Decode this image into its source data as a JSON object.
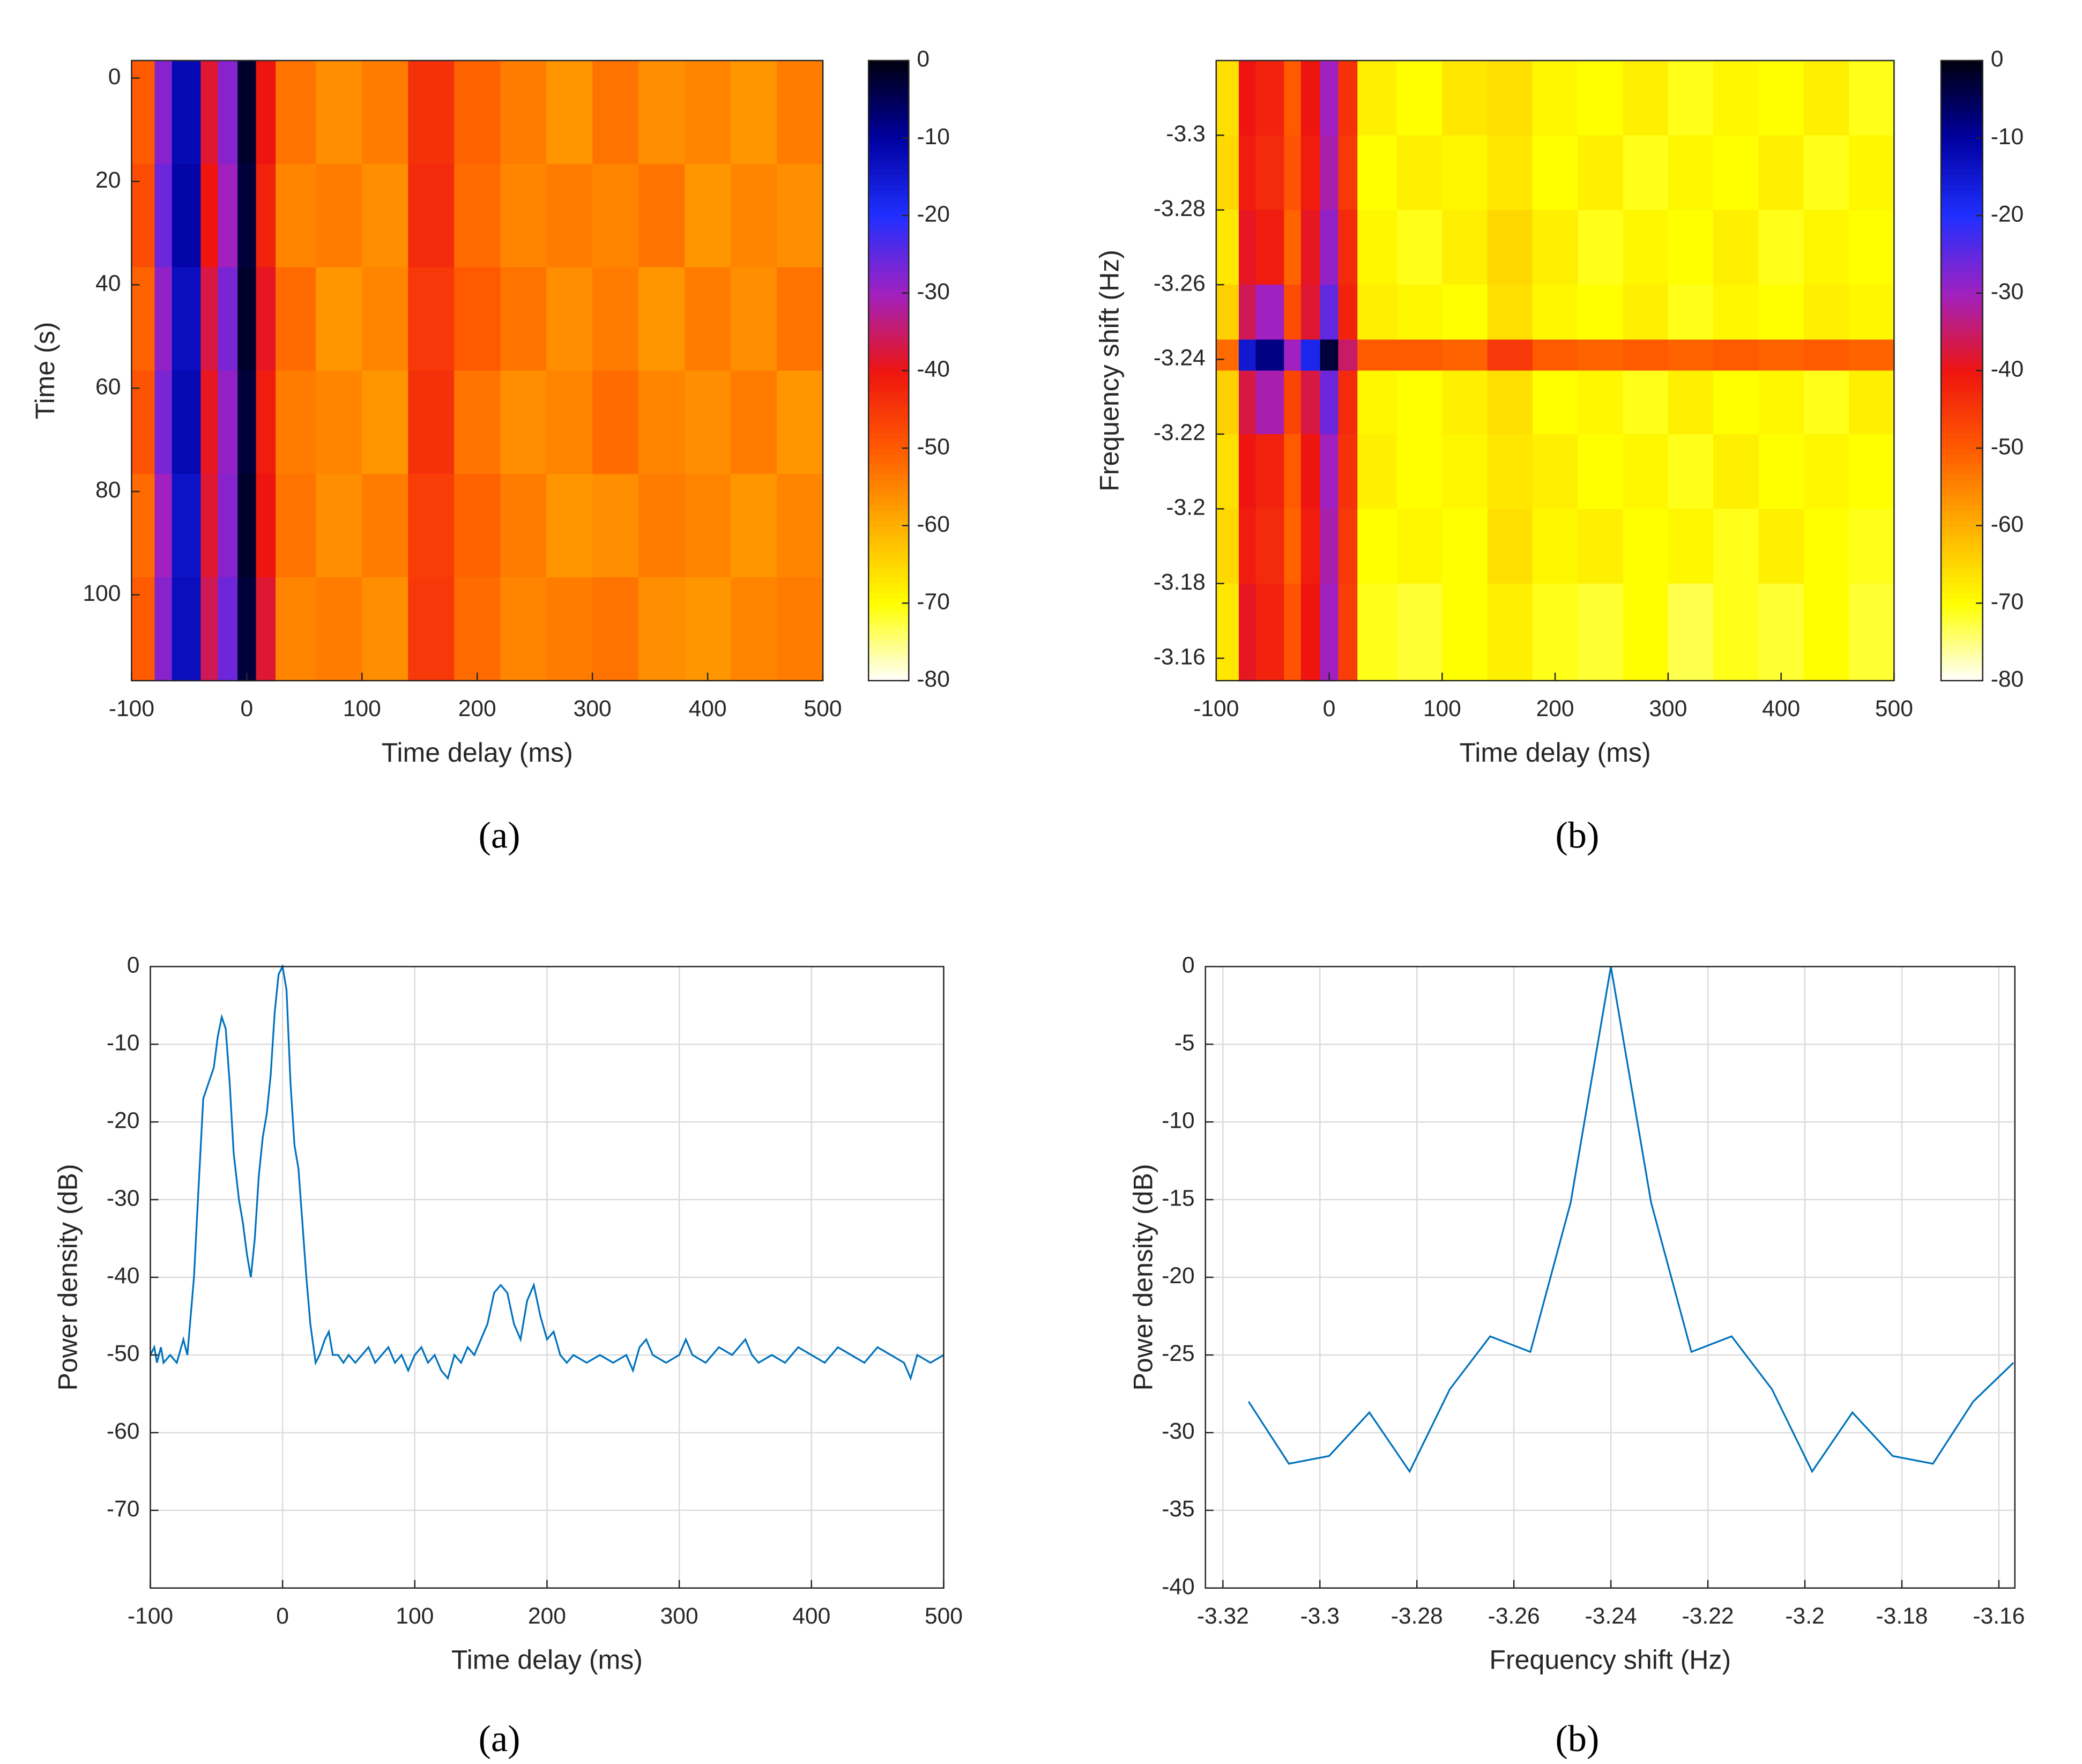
{
  "chart_data": [
    {
      "type": "heatmap",
      "panel_label": "(a)",
      "xlabel": "Time delay (ms)",
      "ylabel": "Time (s)",
      "xlim": [
        -100,
        500
      ],
      "xticks": [
        -100,
        0,
        100,
        200,
        300,
        400,
        500
      ],
      "ylim": [
        -3.4,
        116.6
      ],
      "yreverse": true,
      "yticks": [
        0,
        20,
        40,
        60,
        80,
        100
      ],
      "x_edges": [
        -100,
        -80,
        -65,
        -40,
        -25,
        -8,
        8,
        25,
        60,
        100,
        140,
        180,
        220,
        260,
        300,
        340,
        380,
        420,
        460,
        500
      ],
      "y_edges": [
        -3.4,
        16.6,
        36.6,
        56.6,
        76.6,
        96.6,
        116.6
      ],
      "z": [
        [
          -50,
          -28,
          -12,
          -38,
          -28,
          -2,
          -40,
          -53,
          -56,
          -54,
          -44,
          -51,
          -54,
          -57,
          -53,
          -56,
          -55,
          -57,
          -54
        ],
        [
          -48,
          -26,
          -11,
          -40,
          -30,
          -3,
          -42,
          -55,
          -54,
          -56,
          -43,
          -52,
          -55,
          -54,
          -55,
          -53,
          -57,
          -55,
          -56
        ],
        [
          -51,
          -29,
          -13,
          -37,
          -27,
          -2,
          -39,
          -52,
          -57,
          -55,
          -45,
          -50,
          -53,
          -56,
          -54,
          -57,
          -54,
          -56,
          -53
        ],
        [
          -49,
          -27,
          -12,
          -39,
          -29,
          -3,
          -41,
          -54,
          -55,
          -57,
          -44,
          -53,
          -56,
          -55,
          -52,
          -55,
          -56,
          -54,
          -57
        ],
        [
          -52,
          -30,
          -14,
          -38,
          -28,
          -2,
          -40,
          -53,
          -56,
          -54,
          -46,
          -51,
          -54,
          -57,
          -56,
          -54,
          -55,
          -57,
          -55
        ],
        [
          -50,
          -28,
          -13,
          -36,
          -26,
          -3,
          -38,
          -55,
          -54,
          -56,
          -45,
          -52,
          -55,
          -54,
          -53,
          -56,
          -57,
          -55,
          -54
        ]
      ],
      "clim": [
        -80,
        0
      ],
      "cticks": [
        0,
        -10,
        -20,
        -30,
        -40,
        -50,
        -60,
        -70,
        -80
      ],
      "colormap": [
        "#ffffff",
        "#ffff00",
        "#ffb000",
        "#ff5a00",
        "#ee1510",
        "#a020c0",
        "#2030ff",
        "#0000a0",
        "#000010"
      ]
    },
    {
      "type": "heatmap",
      "panel_label": "(b)",
      "xlabel": "Time delay (ms)",
      "ylabel": "Frequency shift (Hz)",
      "xlim": [
        -100,
        500
      ],
      "xticks": [
        -100,
        0,
        100,
        200,
        300,
        400,
        500
      ],
      "ylim": [
        -3.32,
        -3.154
      ],
      "yreverse": true,
      "yticks": [
        -3.3,
        -3.28,
        -3.26,
        -3.24,
        -3.22,
        -3.2,
        -3.18,
        -3.16
      ],
      "x_edges": [
        -100,
        -80,
        -65,
        -40,
        -25,
        -8,
        8,
        25,
        60,
        100,
        140,
        180,
        220,
        260,
        300,
        340,
        380,
        420,
        460,
        500
      ],
      "y_edges": [
        -3.32,
        -3.3,
        -3.28,
        -3.26,
        -3.2453,
        -3.237,
        -3.22,
        -3.2,
        -3.18,
        -3.154
      ],
      "z": [
        [
          -66,
          -40,
          -42,
          -50,
          -40,
          -30,
          -44,
          -68,
          -70,
          -67,
          -66,
          -69,
          -70,
          -68,
          -71,
          -69,
          -70,
          -68,
          -71
        ],
        [
          -65,
          -41,
          -43,
          -49,
          -41,
          -31,
          -45,
          -70,
          -68,
          -69,
          -67,
          -70,
          -68,
          -71,
          -69,
          -70,
          -68,
          -71,
          -69
        ],
        [
          -67,
          -39,
          -41,
          -51,
          -39,
          -29,
          -43,
          -69,
          -71,
          -68,
          -65,
          -68,
          -71,
          -69,
          -70,
          -68,
          -71,
          -69,
          -70
        ],
        [
          -64,
          -36,
          -30,
          -48,
          -38,
          -25,
          -42,
          -68,
          -69,
          -70,
          -66,
          -69,
          -70,
          -68,
          -71,
          -69,
          -70,
          -68,
          -69
        ],
        [
          -52,
          -15,
          -8,
          -30,
          -18,
          -3,
          -35,
          -50,
          -50,
          -51,
          -45,
          -50,
          -51,
          -50,
          -51,
          -50,
          -51,
          -50,
          -51
        ],
        [
          -64,
          -37,
          -31,
          -47,
          -37,
          -26,
          -43,
          -69,
          -70,
          -68,
          -66,
          -70,
          -69,
          -71,
          -68,
          -70,
          -69,
          -71,
          -68
        ],
        [
          -66,
          -40,
          -42,
          -50,
          -40,
          -30,
          -44,
          -68,
          -70,
          -69,
          -67,
          -68,
          -70,
          -69,
          -71,
          -68,
          -70,
          -69,
          -70
        ],
        [
          -65,
          -41,
          -43,
          -51,
          -41,
          -31,
          -45,
          -70,
          -69,
          -70,
          -66,
          -69,
          -68,
          -70,
          -69,
          -71,
          -68,
          -70,
          -71
        ],
        [
          -67,
          -39,
          -42,
          -49,
          -40,
          -30,
          -46,
          -71,
          -72,
          -70,
          -68,
          -71,
          -72,
          -70,
          -73,
          -71,
          -72,
          -70,
          -72
        ]
      ],
      "clim": [
        -80,
        0
      ],
      "cticks": [
        0,
        -10,
        -20,
        -30,
        -40,
        -50,
        -60,
        -70,
        -80
      ],
      "colormap": [
        "#ffffff",
        "#ffff00",
        "#ffb000",
        "#ff5a00",
        "#ee1510",
        "#a020c0",
        "#2030ff",
        "#0000a0",
        "#000010"
      ]
    },
    {
      "type": "line",
      "panel_label": "(a)",
      "xlabel": "Time delay (ms)",
      "ylabel": "Power density (dB)",
      "xlim": [
        -100,
        500
      ],
      "xticks": [
        -100,
        0,
        100,
        200,
        300,
        400,
        500
      ],
      "ylim": [
        -80,
        0
      ],
      "yticks": [
        0,
        -10,
        -20,
        -30,
        -40,
        -50,
        -60,
        -70
      ],
      "grid": true,
      "series": [
        {
          "color": "#0072bd",
          "x": [
            -100,
            -97,
            -95,
            -92,
            -90,
            -85,
            -80,
            -75,
            -72,
            -70,
            -67,
            -64,
            -60,
            -56,
            -52,
            -49,
            -46,
            -43,
            -40,
            -37,
            -33,
            -30,
            -27,
            -24,
            -21,
            -18,
            -15,
            -12,
            -9,
            -6,
            -3,
            0,
            3,
            6,
            9,
            12,
            15,
            18,
            21,
            25,
            28,
            32,
            35,
            38,
            42,
            46,
            50,
            55,
            60,
            65,
            70,
            75,
            80,
            85,
            90,
            95,
            100,
            105,
            110,
            115,
            120,
            125,
            130,
            135,
            140,
            145,
            150,
            155,
            160,
            165,
            170,
            175,
            180,
            185,
            190,
            195,
            200,
            205,
            210,
            215,
            220,
            230,
            240,
            250,
            260,
            265,
            270,
            275,
            280,
            290,
            300,
            305,
            310,
            320,
            330,
            340,
            350,
            355,
            360,
            370,
            380,
            390,
            400,
            410,
            420,
            430,
            440,
            450,
            460,
            470,
            475,
            480,
            490,
            500
          ],
          "values": [
            -50,
            -49,
            -51,
            -49,
            -51,
            -50,
            -51,
            -48,
            -50,
            -46,
            -40,
            -30,
            -17,
            -15,
            -13,
            -9,
            -6.5,
            -8,
            -15,
            -24,
            -30,
            -33,
            -37,
            -40,
            -35,
            -27,
            -22,
            -19,
            -14,
            -6,
            -1,
            0,
            -3,
            -15,
            -23,
            -26,
            -33,
            -40,
            -46,
            -51,
            -50,
            -48,
            -47,
            -50,
            -50,
            -51,
            -50,
            -51,
            -50,
            -49,
            -51,
            -50,
            -49,
            -51,
            -50,
            -52,
            -50,
            -49,
            -51,
            -50,
            -52,
            -53,
            -50,
            -51,
            -49,
            -50,
            -48,
            -46,
            -42,
            -41,
            -42,
            -46,
            -48,
            -43,
            -41,
            -45,
            -48,
            -47,
            -50,
            -51,
            -50,
            -51,
            -50,
            -51,
            -50,
            -52,
            -49,
            -48,
            -50,
            -51,
            -50,
            -48,
            -50,
            -51,
            -49,
            -50,
            -48,
            -50,
            -51,
            -50,
            -51,
            -49,
            -50,
            -51,
            -49,
            -50,
            -51,
            -49,
            -50,
            -51,
            -53,
            -50,
            -51,
            -50
          ]
        }
      ]
    },
    {
      "type": "line",
      "panel_label": "(b)",
      "xlabel": "Frequency shift (Hz)",
      "ylabel": "Power density (dB)",
      "xlim": [
        -3.3236,
        -3.1567
      ],
      "xticks": [
        -3.32,
        -3.3,
        -3.28,
        -3.26,
        -3.24,
        -3.22,
        -3.2,
        -3.18,
        -3.16
      ],
      "ylim": [
        -40,
        0
      ],
      "yticks": [
        0,
        -5,
        -10,
        -15,
        -20,
        -25,
        -30,
        -35,
        -40
      ],
      "grid": true,
      "series": [
        {
          "color": "#0072bd",
          "x": [
            -3.3147,
            -3.3064,
            -3.2981,
            -3.2898,
            -3.2815,
            -3.2732,
            -3.2649,
            -3.2566,
            -3.2483,
            -3.24,
            -3.2317,
            -3.2234,
            -3.2151,
            -3.2068,
            -3.1985,
            -3.1902,
            -3.1819,
            -3.1736,
            -3.1653,
            -3.157
          ],
          "values": [
            -28,
            -32,
            -31.5,
            -28.7,
            -32.5,
            -27.2,
            -23.8,
            -24.8,
            -15.2,
            0,
            -15.2,
            -24.8,
            -23.8,
            -27.2,
            -32.5,
            -28.7,
            -31.5,
            -32,
            -28,
            -25.5
          ]
        }
      ]
    }
  ]
}
